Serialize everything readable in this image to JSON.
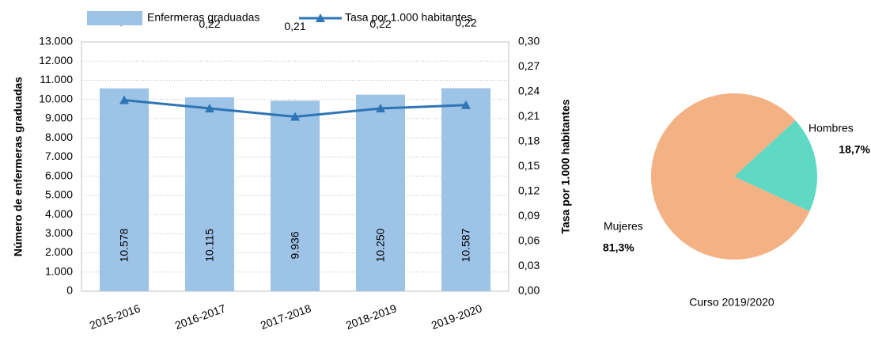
{
  "chart_data": [
    {
      "type": "bar",
      "categories": [
        "2015-2016",
        "2016-2017",
        "2017-2018",
        "2018-2019",
        "2019-2020"
      ],
      "series": [
        {
          "name": "Enfermeras graduadas",
          "type": "bar",
          "color": "#9dc3e6",
          "values": [
            10578,
            10115,
            9936,
            10250,
            10587
          ],
          "value_labels": [
            "10.578",
            "10.115",
            "9.936",
            "10.250",
            "10.587"
          ]
        },
        {
          "name": "Tasa por 1.000 habitantes",
          "type": "line",
          "axis": "y2",
          "color": "#2e75b6",
          "values": [
            0.23,
            0.22,
            0.21,
            0.22,
            0.224
          ],
          "value_labels": [
            "0,23",
            "0,22",
            "0,21",
            "0,22",
            "0,22"
          ]
        }
      ],
      "y_label": "Número de enfermeras graduadas",
      "y2_label": "Tasa por 1.000 habitantes",
      "ylim": [
        0,
        13000
      ],
      "yticks": [
        0,
        {
          "value": 1000,
          "label": "1.000"
        },
        {
          "value": 2000,
          "label": "2.000"
        },
        {
          "value": 3000,
          "label": "3.000"
        },
        {
          "value": 4000,
          "label": "4.000"
        },
        {
          "value": 5000,
          "label": "5.000"
        },
        {
          "value": 6000,
          "label": "6.000"
        },
        {
          "value": 7000,
          "label": "7.000"
        },
        {
          "value": 8000,
          "label": "8.000"
        },
        {
          "value": 9000,
          "label": "9.000"
        },
        {
          "value": 10000,
          "label": "10.000"
        },
        {
          "value": 11000,
          "label": "11.000"
        },
        {
          "value": 12000,
          "label": "12.000"
        },
        {
          "value": 13000,
          "label": "13.000"
        }
      ],
      "y2lim": [
        0,
        0.3
      ],
      "y2ticks": [
        {
          "value": 0,
          "label": "0,00"
        },
        {
          "value": 0.03,
          "label": "0,03"
        },
        {
          "value": 0.06,
          "label": "0,06"
        },
        {
          "value": 0.09,
          "label": "0,09"
        },
        {
          "value": 0.12,
          "label": "0,12"
        },
        {
          "value": 0.15,
          "label": "0,15"
        },
        {
          "value": 0.18,
          "label": "0,18"
        },
        {
          "value": 0.21,
          "label": "0,21"
        },
        {
          "value": 0.24,
          "label": "0,24"
        },
        {
          "value": 0.27,
          "label": "0,27"
        },
        {
          "value": 0.3,
          "label": "0,30"
        }
      ],
      "grid": true,
      "legend": "top"
    },
    {
      "type": "pie",
      "categories": [
        "Hombres",
        "Mujeres"
      ],
      "values": [
        18.7,
        81.3
      ],
      "value_labels": [
        "18,7%",
        "81,3%"
      ],
      "colors": [
        "#5fd9c4",
        "#f4b183"
      ],
      "caption": "Curso 2019/2020"
    }
  ]
}
